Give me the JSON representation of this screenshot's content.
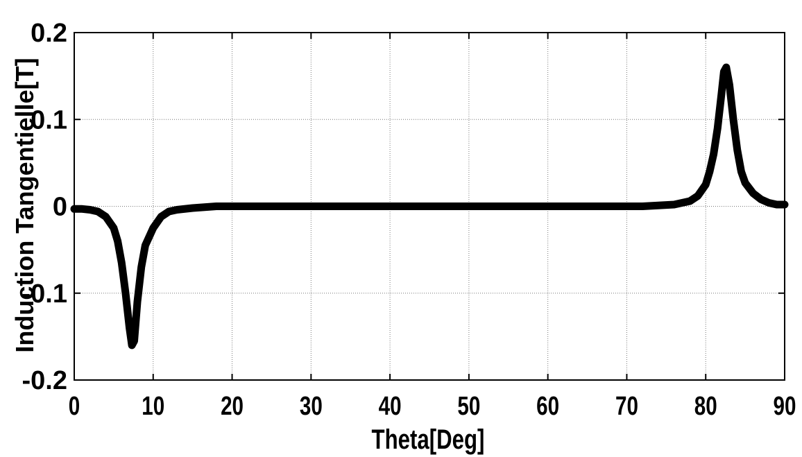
{
  "chart_data": {
    "type": "line",
    "title": "",
    "xlabel": "Theta[Deg]",
    "ylabel": "Induction Tangentielle[T]",
    "xlim": [
      0,
      90
    ],
    "ylim": [
      -0.2,
      0.2
    ],
    "grid": true,
    "x_ticks": [
      0,
      10,
      20,
      30,
      40,
      50,
      60,
      70,
      80,
      90
    ],
    "x_tick_labels": [
      "0",
      "10",
      "20",
      "30",
      "40",
      "50",
      "60",
      "70",
      "80",
      "90"
    ],
    "y_ticks": [
      0.2,
      0.1,
      0,
      -0.1,
      -0.2
    ],
    "y_tick_labels": [
      "0.2",
      "0.1",
      "0",
      "-0.1",
      "-0.2"
    ],
    "line_color": "#000000",
    "series": [
      {
        "x": [
          0,
          1,
          2,
          3,
          4,
          5,
          5.5,
          6,
          6.5,
          7,
          7.3,
          7.6,
          8,
          8.5,
          9,
          10,
          11,
          12,
          13,
          15,
          18,
          20,
          30,
          40,
          50,
          60,
          70,
          72,
          74,
          76,
          77,
          78,
          79,
          80,
          80.5,
          81,
          81.5,
          82,
          82.3,
          82.6,
          83,
          83.5,
          84,
          84.5,
          85,
          86,
          87,
          88,
          89,
          90
        ],
        "y": [
          -0.003,
          -0.003,
          -0.004,
          -0.006,
          -0.012,
          -0.025,
          -0.04,
          -0.065,
          -0.1,
          -0.14,
          -0.16,
          -0.155,
          -0.11,
          -0.07,
          -0.045,
          -0.025,
          -0.012,
          -0.006,
          -0.004,
          -0.002,
          0,
          0,
          0,
          0,
          0,
          0,
          0,
          0,
          0.001,
          0.002,
          0.004,
          0.006,
          0.012,
          0.025,
          0.04,
          0.06,
          0.09,
          0.13,
          0.155,
          0.16,
          0.14,
          0.1,
          0.065,
          0.04,
          0.027,
          0.015,
          0.008,
          0.004,
          0.002,
          0.002
        ]
      }
    ]
  }
}
